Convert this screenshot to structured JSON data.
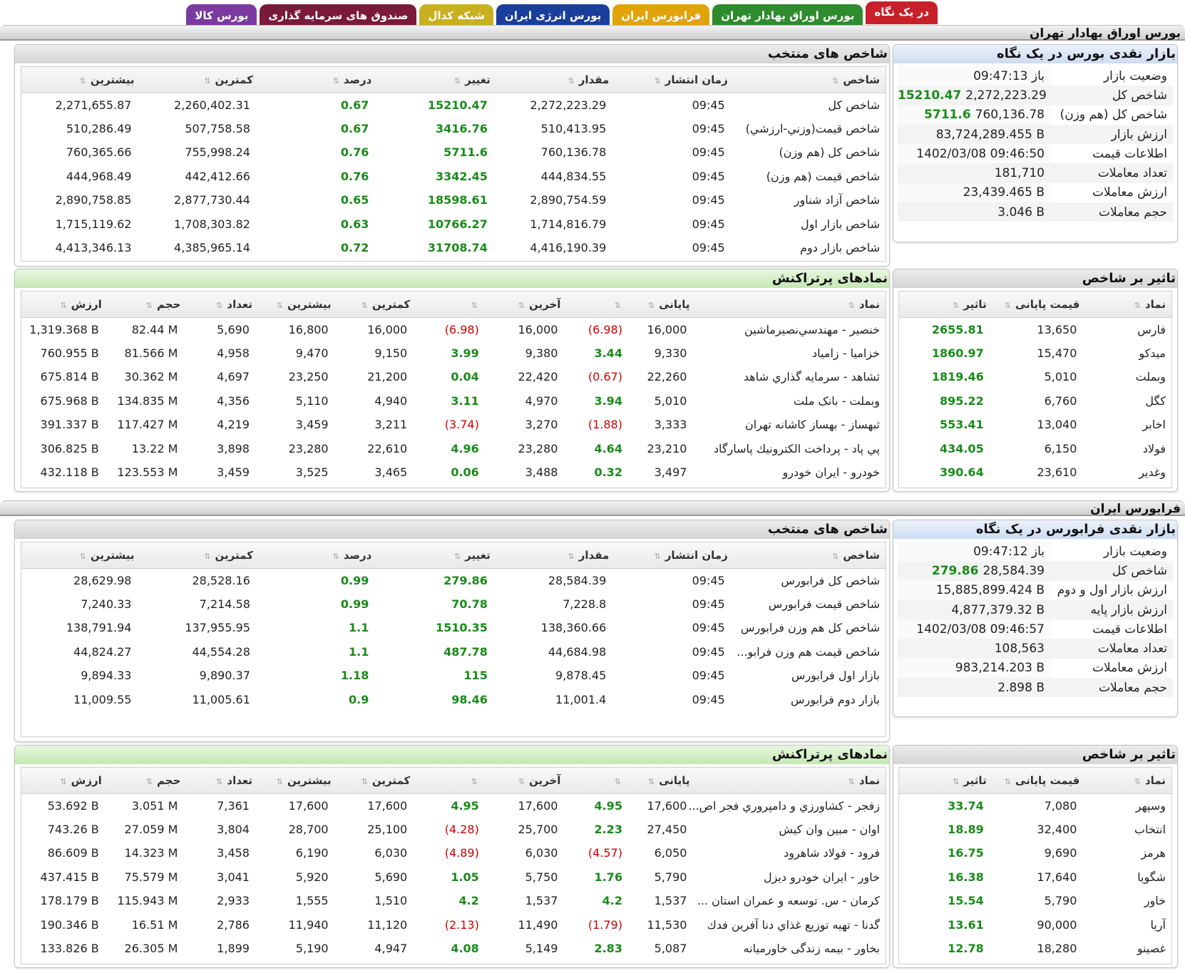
{
  "tabs": [
    {
      "label": "در یک نگاه",
      "color": "#c8202a",
      "active": true
    },
    {
      "label": "بورس اوراق بهادار تهران",
      "color": "#2e8b2e"
    },
    {
      "label": "فرابورس ایران",
      "color": "#e0a40a"
    },
    {
      "label": "بورس انرژی ایران",
      "color": "#1a3f9a"
    },
    {
      "label": "شبکه کدال",
      "color": "#c9b020"
    },
    {
      "label": "صندوق های سرمایه گذاری",
      "color": "#7a1a3a"
    },
    {
      "label": "بورس کالا",
      "color": "#7a3aa0"
    }
  ],
  "tse": {
    "section_title": "بورس اوراق بهادار تهران",
    "overview": {
      "title": "بازار نقدی بورس در یک نگاه",
      "rows": [
        {
          "label": "وضعیت بازار",
          "value": "09:47:13  باز",
          "green": ""
        },
        {
          "label": "شاخص کل",
          "value": "2,272,223.29",
          "green": "15210.47"
        },
        {
          "label": "شاخص کل (هم وزن)",
          "value": "760,136.78",
          "green": "5711.6"
        },
        {
          "label": "ارزش بازار",
          "value": "83,724,289.455 B",
          "green": ""
        },
        {
          "label": "اطلاعات قیمت",
          "value": "1402/03/08 09:46:50",
          "green": ""
        },
        {
          "label": "تعداد معاملات",
          "value": "181,710",
          "green": ""
        },
        {
          "label": "ارزش معاملات",
          "value": "23,439.465 B",
          "green": ""
        },
        {
          "label": "حجم معاملات",
          "value": "3.046 B",
          "green": ""
        }
      ]
    },
    "indices": {
      "title": "شاخص های منتخب",
      "headers": [
        "شاخص",
        "زمان انتشار",
        "مقدار",
        "تغییر",
        "درصد",
        "کمترین",
        "بیشترین"
      ],
      "rows": [
        [
          "شاخص کل",
          "09:45",
          "2,272,223.29",
          "15210.47",
          "0.67",
          "2,260,402.31",
          "2,271,655.87"
        ],
        [
          "شاخص قيمت(وزني-ارزشي)",
          "09:45",
          "510,413.95",
          "3416.76",
          "0.67",
          "507,758.58",
          "510,286.49"
        ],
        [
          "شاخص کل (هم وزن)",
          "09:45",
          "760,136.78",
          "5711.6",
          "0.76",
          "755,998.24",
          "760,365.66"
        ],
        [
          "شاخص قیمت (هم وزن)",
          "09:45",
          "444,834.55",
          "3342.45",
          "0.76",
          "442,412.66",
          "444,968.49"
        ],
        [
          "شاخص آزاد شناور",
          "09:45",
          "2,890,754.59",
          "18598.61",
          "0.65",
          "2,877,730.44",
          "2,890,758.85"
        ],
        [
          "شاخص بازار اول",
          "09:45",
          "1,714,816.79",
          "10766.27",
          "0.63",
          "1,708,303.82",
          "1,715,119.62"
        ],
        [
          "شاخص بازار دوم",
          "09:45",
          "4,416,190.39",
          "31708.74",
          "0.72",
          "4,385,965.14",
          "4,413,346.13"
        ]
      ]
    },
    "impact": {
      "title": "تاثیر بر شاخص",
      "headers": [
        "نماد",
        "قیمت پایانی",
        "تاثیر"
      ],
      "rows": [
        [
          "فارس",
          "13,650",
          "2655.81"
        ],
        [
          "میدکو",
          "15,470",
          "1860.97"
        ],
        [
          "وبملت",
          "5,010",
          "1819.46"
        ],
        [
          "کگل",
          "6,760",
          "895.22"
        ],
        [
          "اخابر",
          "13,040",
          "553.41"
        ],
        [
          "فولاد",
          "6,150",
          "434.05"
        ],
        [
          "وغدیر",
          "23,610",
          "390.64"
        ]
      ]
    },
    "active": {
      "title": "نمادهای پرتراکنش",
      "headers": [
        "نماد",
        "پایانی",
        "",
        "آخرین",
        "",
        "کمترین",
        "بیشترین",
        "تعداد",
        "حجم",
        "ارزش"
      ],
      "rows": [
        [
          "خنصير - مهندسي‌نصيرماشين",
          "16,000",
          "(6.98)",
          "16,000",
          "(6.98)",
          "16,000",
          "16,800",
          "5,690",
          "82.44 M",
          "1,319.368 B"
        ],
        [
          "خزامیا - زامیاد",
          "9,330",
          "3.44",
          "9,380",
          "3.99",
          "9,150",
          "9,470",
          "4,958",
          "81.566 M",
          "760.955 B"
        ],
        [
          "ثشاهد - سرمايه گذاري شاهد",
          "22,260",
          "(0.67)",
          "22,420",
          "0.04",
          "21,200",
          "23,250",
          "4,697",
          "30.362 M",
          "675.814 B"
        ],
        [
          "وبملت - بانک ملت",
          "5,010",
          "3.94",
          "4,970",
          "3.11",
          "4,940",
          "5,110",
          "4,356",
          "134.835 M",
          "675.968 B"
        ],
        [
          "ثبهساز - بهساز کاشانه تهران",
          "3,333",
          "(1.88)",
          "3,270",
          "(3.74)",
          "3,211",
          "3,459",
          "4,219",
          "117.427 M",
          "391.337 B"
        ],
        [
          "پي پاد - پرداخت الکترونيك پاسارگاد",
          "23,210",
          "4.64",
          "23,280",
          "4.96",
          "22,610",
          "23,280",
          "3,898",
          "13.22 M",
          "306.825 B"
        ],
        [
          "خودرو - ايران‌ خودرو",
          "3,497",
          "0.32",
          "3,488",
          "0.06",
          "3,465",
          "3,525",
          "3,459",
          "123.553 M",
          "432.118 B"
        ]
      ]
    }
  },
  "ifb": {
    "section_title": "فرابورس ایران",
    "overview": {
      "title": "بازار نقدی فرابورس در یک نگاه",
      "rows": [
        {
          "label": "وضعیت بازار",
          "value": "09:47:12  باز",
          "green": ""
        },
        {
          "label": "شاخص کل",
          "value": "28,584.39",
          "green": "279.86"
        },
        {
          "label": "ارزش بازار اول و دوم",
          "value": "15,885,899.424 B",
          "green": ""
        },
        {
          "label": "ارزش بازار پایه",
          "value": "4,877,379.32 B",
          "green": ""
        },
        {
          "label": "اطلاعات قیمت",
          "value": "1402/03/08 09:46:57",
          "green": ""
        },
        {
          "label": "تعداد معاملات",
          "value": "108,563",
          "green": ""
        },
        {
          "label": "ارزش معاملات",
          "value": "983,214.203 B",
          "green": ""
        },
        {
          "label": "حجم معاملات",
          "value": "2.898 B",
          "green": ""
        }
      ]
    },
    "indices": {
      "title": "شاخص های منتخب",
      "headers": [
        "شاخص",
        "زمان انتشار",
        "مقدار",
        "تغییر",
        "درصد",
        "کمترین",
        "بیشترین"
      ],
      "rows": [
        [
          "شاخص کل فرابورس",
          "09:45",
          "28,584.39",
          "279.86",
          "0.99",
          "28,528.16",
          "28,629.98"
        ],
        [
          "شاخص قیمت فرابورس",
          "09:45",
          "7,228.8",
          "70.78",
          "0.99",
          "7,214.58",
          "7,240.33"
        ],
        [
          "شاخص کل هم وزن فرابورس",
          "09:45",
          "138,360.66",
          "1510.35",
          "1.1",
          "137,955.95",
          "138,791.94"
        ],
        [
          "شاخص قیمت هم وزن فرابو...",
          "09:45",
          "44,684.98",
          "487.78",
          "1.1",
          "44,554.28",
          "44,824.27"
        ],
        [
          "بازار اول فرابورس",
          "09:45",
          "9,878.45",
          "115",
          "1.18",
          "9,890.37",
          "9,894.33"
        ],
        [
          "بازار دوم فرابورس",
          "09:45",
          "11,001.4",
          "98.46",
          "0.9",
          "11,005.61",
          "11,009.55"
        ]
      ]
    },
    "impact": {
      "title": "تاثیر بر شاخص",
      "headers": [
        "نماد",
        "قیمت پایانی",
        "تاثیر"
      ],
      "rows": [
        [
          "وسپهر",
          "7,080",
          "33.74"
        ],
        [
          "انتخاب",
          "32,400",
          "18.89"
        ],
        [
          "هرمز",
          "9,690",
          "16.75"
        ],
        [
          "شگویا",
          "17,640",
          "16.38"
        ],
        [
          "خاور",
          "5,790",
          "15.54"
        ],
        [
          "آریا",
          "90,000",
          "13.61"
        ],
        [
          "غصینو",
          "18,280",
          "12.78"
        ]
      ]
    },
    "active": {
      "title": "نمادهای پرتراکنش",
      "headers": [
        "نماد",
        "پایانی",
        "",
        "آخرین",
        "",
        "کمترین",
        "بیشترین",
        "تعداد",
        "حجم",
        "ارزش"
      ],
      "rows": [
        [
          "زفجر - کشاورزي و دامپروري فجر اص...",
          "17,600",
          "4.95",
          "17,600",
          "4.95",
          "17,600",
          "17,600",
          "7,361",
          "3.051 M",
          "53.692 B"
        ],
        [
          "اوان - مبين وان كيش",
          "27,450",
          "2.23",
          "25,700",
          "(4.28)",
          "25,100",
          "28,700",
          "3,804",
          "27.059 M",
          "743.26 B"
        ],
        [
          "فرود - فولاد شاهرود",
          "6,050",
          "(4.57)",
          "6,030",
          "(4.89)",
          "6,030",
          "6,190",
          "3,458",
          "14.323 M",
          "86.609 B"
        ],
        [
          "خاور - ايران‌ خودرو ديزل",
          "5,790",
          "1.76",
          "5,750",
          "1.05",
          "5,690",
          "5,920",
          "3,041",
          "75.579 M",
          "437.415 B"
        ],
        [
          "كرمان - س. توسعه و عمران استان ...",
          "1,537",
          "4.2",
          "1,537",
          "4.2",
          "1,510",
          "1,555",
          "2,933",
          "115.943 M",
          "178.179 B"
        ],
        [
          "گدنا - تهيه توزيع غذاي دنا آفرين فدك",
          "11,530",
          "(1.79)",
          "11,490",
          "(2.13)",
          "11,120",
          "11,940",
          "2,786",
          "16.51 M",
          "190.346 B"
        ],
        [
          "بخاور - بیمه زندگی خاورمیانه",
          "5,087",
          "2.83",
          "5,149",
          "4.08",
          "4,947",
          "5,190",
          "1,899",
          "26.305 M",
          "133.826 B"
        ]
      ]
    }
  }
}
